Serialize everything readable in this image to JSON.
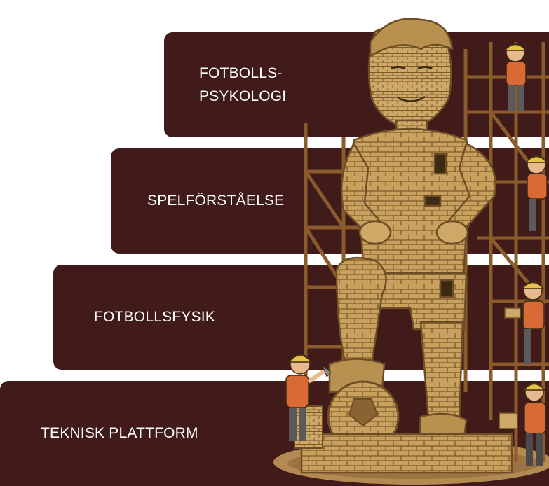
{
  "steps": [
    {
      "label": "FOTBOLLS-\nPSYKOLOGI"
    },
    {
      "label": "SPELFÖRSTÅELSE"
    },
    {
      "label": "FOTBOLLSFYSIK"
    },
    {
      "label": "TEKNISK PLATTFORM"
    }
  ],
  "colors": {
    "step_background": "#411a1a",
    "statue": "#c8a15e",
    "scaffold": "#9a6a35",
    "worker_shirt": "#d86b35",
    "helmet": "#e6c24a"
  },
  "illustration": {
    "icon": "brick-statue-illustration",
    "subjects": [
      "statue",
      "scaffolding",
      "construction-workers",
      "football"
    ]
  }
}
